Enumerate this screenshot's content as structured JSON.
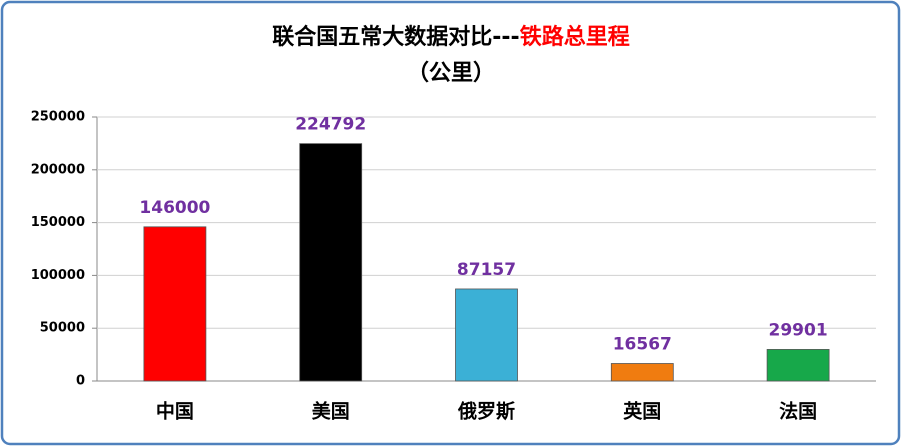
{
  "chart_data": {
    "type": "bar",
    "title": "联合国五常大数据对比---",
    "title_highlight": "铁路总里程",
    "subtitle": "（公里）",
    "categories": [
      "中国",
      "美国",
      "俄罗斯",
      "英国",
      "法国"
    ],
    "values": [
      146000,
      224792,
      87157,
      16567,
      29901
    ],
    "colors": [
      "#ff0000",
      "#000000",
      "#3bb0d6",
      "#f07c10",
      "#17a84a"
    ],
    "ylim": [
      0,
      250000
    ],
    "yticks": [
      0,
      50000,
      100000,
      150000,
      200000,
      250000
    ],
    "grid": true
  }
}
